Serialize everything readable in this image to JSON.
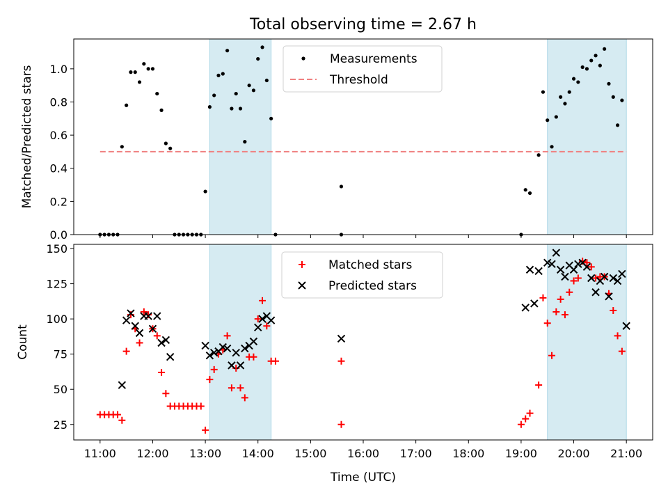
{
  "figure": {
    "title": "Total observing time = 2.67 h",
    "xlabel": "Time (UTC)"
  },
  "chart_data": [
    {
      "type": "scatter",
      "ylabel": "Matched/Predicted stars",
      "xlim": [
        "10:30",
        "21:30"
      ],
      "ylim": [
        0,
        1.18
      ],
      "y_ticks": [
        "0.0",
        "0.2",
        "0.4",
        "0.6",
        "0.8",
        "1.0"
      ],
      "grid": false,
      "legend": "upper center",
      "shaded_intervals": [
        [
          "13:05",
          "14:15"
        ],
        [
          "19:30",
          "21:00"
        ]
      ],
      "shade_color": "#add8e6",
      "series": [
        {
          "name": "Measurements",
          "marker": "dot",
          "color": "#000000",
          "points": [
            [
              "11:00",
              0.0
            ],
            [
              "11:05",
              0.0
            ],
            [
              "11:10",
              0.0
            ],
            [
              "11:15",
              0.0
            ],
            [
              "11:20",
              0.0
            ],
            [
              "11:25",
              0.53
            ],
            [
              "11:30",
              0.78
            ],
            [
              "11:35",
              0.98
            ],
            [
              "11:40",
              0.98
            ],
            [
              "11:45",
              0.92
            ],
            [
              "11:50",
              1.03
            ],
            [
              "11:55",
              1.0
            ],
            [
              "12:00",
              1.0
            ],
            [
              "12:05",
              0.85
            ],
            [
              "12:10",
              0.75
            ],
            [
              "12:15",
              0.55
            ],
            [
              "12:20",
              0.52
            ],
            [
              "12:25",
              0.0
            ],
            [
              "12:30",
              0.0
            ],
            [
              "12:35",
              0.0
            ],
            [
              "12:40",
              0.0
            ],
            [
              "12:45",
              0.0
            ],
            [
              "12:50",
              0.0
            ],
            [
              "12:55",
              0.0
            ],
            [
              "13:00",
              0.26
            ],
            [
              "13:05",
              0.77
            ],
            [
              "13:10",
              0.84
            ],
            [
              "13:15",
              0.96
            ],
            [
              "13:20",
              0.97
            ],
            [
              "13:25",
              1.11
            ],
            [
              "13:30",
              0.76
            ],
            [
              "13:35",
              0.85
            ],
            [
              "13:40",
              0.76
            ],
            [
              "13:45",
              0.56
            ],
            [
              "13:50",
              0.9
            ],
            [
              "13:55",
              0.87
            ],
            [
              "14:00",
              1.06
            ],
            [
              "14:05",
              1.13
            ],
            [
              "14:10",
              0.93
            ],
            [
              "14:15",
              0.7
            ],
            [
              "14:20",
              0.0
            ],
            [
              "15:35",
              0.0
            ],
            [
              "15:35",
              0.29
            ],
            [
              "19:00",
              0.0
            ],
            [
              "19:05",
              0.27
            ],
            [
              "19:10",
              0.25
            ],
            [
              "19:20",
              0.48
            ],
            [
              "19:25",
              0.86
            ],
            [
              "19:30",
              0.69
            ],
            [
              "19:35",
              0.53
            ],
            [
              "19:40",
              0.71
            ],
            [
              "19:45",
              0.83
            ],
            [
              "19:50",
              0.79
            ],
            [
              "19:55",
              0.86
            ],
            [
              "20:00",
              0.94
            ],
            [
              "20:05",
              0.92
            ],
            [
              "20:10",
              1.01
            ],
            [
              "20:15",
              1.0
            ],
            [
              "20:20",
              1.05
            ],
            [
              "20:25",
              1.08
            ],
            [
              "20:30",
              1.02
            ],
            [
              "20:35",
              1.12
            ],
            [
              "20:40",
              0.91
            ],
            [
              "20:45",
              0.83
            ],
            [
              "20:50",
              0.66
            ],
            [
              "20:55",
              0.81
            ]
          ]
        },
        {
          "name": "Threshold",
          "marker": "dashed-line",
          "color": "#f08080",
          "points": [
            [
              "11:00",
              0.5
            ],
            [
              "21:00",
              0.5
            ]
          ]
        }
      ]
    },
    {
      "type": "scatter",
      "ylabel": "Count",
      "xlim": [
        "10:30",
        "21:30"
      ],
      "ylim": [
        14,
        153
      ],
      "x_ticks": [
        "11:00",
        "12:00",
        "13:00",
        "14:00",
        "15:00",
        "16:00",
        "17:00",
        "18:00",
        "19:00",
        "20:00",
        "21:00"
      ],
      "y_ticks": [
        "25",
        "50",
        "75",
        "100",
        "125",
        "150"
      ],
      "grid": false,
      "legend": "upper center",
      "shaded_intervals": [
        [
          "13:05",
          "14:15"
        ],
        [
          "19:30",
          "21:00"
        ]
      ],
      "shade_color": "#add8e6",
      "series": [
        {
          "name": "Matched stars",
          "marker": "plus",
          "color": "#ff0000",
          "points": [
            [
              "11:00",
              32
            ],
            [
              "11:05",
              32
            ],
            [
              "11:10",
              32
            ],
            [
              "11:15",
              32
            ],
            [
              "11:20",
              32
            ],
            [
              "11:25",
              28
            ],
            [
              "11:30",
              77
            ],
            [
              "11:35",
              103
            ],
            [
              "11:40",
              93
            ],
            [
              "11:45",
              83
            ],
            [
              "11:50",
              105
            ],
            [
              "11:55",
              103
            ],
            [
              "12:00",
              93
            ],
            [
              "12:05",
              88
            ],
            [
              "12:10",
              62
            ],
            [
              "12:15",
              47
            ],
            [
              "12:20",
              38
            ],
            [
              "12:25",
              38
            ],
            [
              "12:30",
              38
            ],
            [
              "12:35",
              38
            ],
            [
              "12:40",
              38
            ],
            [
              "12:45",
              38
            ],
            [
              "12:50",
              38
            ],
            [
              "12:55",
              38
            ],
            [
              "13:00",
              21
            ],
            [
              "13:05",
              57
            ],
            [
              "13:10",
              64
            ],
            [
              "13:15",
              75
            ],
            [
              "13:20",
              78
            ],
            [
              "13:25",
              88
            ],
            [
              "13:30",
              51
            ],
            [
              "13:35",
              65
            ],
            [
              "13:40",
              51
            ],
            [
              "13:45",
              44
            ],
            [
              "13:50",
              73
            ],
            [
              "13:55",
              73
            ],
            [
              "14:00",
              100
            ],
            [
              "14:05",
              113
            ],
            [
              "14:10",
              95
            ],
            [
              "14:15",
              70
            ],
            [
              "14:20",
              70
            ],
            [
              "15:35",
              70
            ],
            [
              "15:35",
              25
            ],
            [
              "19:00",
              25
            ],
            [
              "19:05",
              29
            ],
            [
              "19:10",
              33
            ],
            [
              "19:20",
              53
            ],
            [
              "19:25",
              115
            ],
            [
              "19:30",
              97
            ],
            [
              "19:35",
              74
            ],
            [
              "19:40",
              105
            ],
            [
              "19:45",
              114
            ],
            [
              "19:50",
              103
            ],
            [
              "19:55",
              119
            ],
            [
              "20:00",
              127
            ],
            [
              "20:05",
              129
            ],
            [
              "20:10",
              141
            ],
            [
              "20:15",
              140
            ],
            [
              "20:20",
              137
            ],
            [
              "20:25",
              129
            ],
            [
              "20:30",
              130
            ],
            [
              "20:35",
              130
            ],
            [
              "20:40",
              118
            ],
            [
              "20:45",
              106
            ],
            [
              "20:50",
              88
            ],
            [
              "20:55",
              77
            ]
          ]
        },
        {
          "name": "Predicted stars",
          "marker": "x",
          "color": "#000000",
          "points": [
            [
              "11:25",
              53
            ],
            [
              "11:30",
              99
            ],
            [
              "11:35",
              104
            ],
            [
              "11:40",
              95
            ],
            [
              "11:45",
              90
            ],
            [
              "11:50",
              102
            ],
            [
              "11:55",
              102
            ],
            [
              "12:00",
              93
            ],
            [
              "12:05",
              102
            ],
            [
              "12:10",
              83
            ],
            [
              "12:15",
              85
            ],
            [
              "12:20",
              73
            ],
            [
              "13:00",
              81
            ],
            [
              "13:05",
              74
            ],
            [
              "13:10",
              76
            ],
            [
              "13:15",
              77
            ],
            [
              "13:20",
              80
            ],
            [
              "13:25",
              79
            ],
            [
              "13:30",
              67
            ],
            [
              "13:35",
              76
            ],
            [
              "13:40",
              67
            ],
            [
              "13:45",
              79
            ],
            [
              "13:50",
              81
            ],
            [
              "13:55",
              84
            ],
            [
              "14:00",
              94
            ],
            [
              "14:05",
              100
            ],
            [
              "14:10",
              102
            ],
            [
              "14:15",
              99
            ],
            [
              "15:35",
              86
            ],
            [
              "19:05",
              108
            ],
            [
              "19:10",
              135
            ],
            [
              "19:15",
              111
            ],
            [
              "19:20",
              134
            ],
            [
              "19:30",
              140
            ],
            [
              "19:35",
              139
            ],
            [
              "19:40",
              147
            ],
            [
              "19:45",
              135
            ],
            [
              "19:50",
              130
            ],
            [
              "19:55",
              138
            ],
            [
              "20:00",
              135
            ],
            [
              "20:05",
              139
            ],
            [
              "20:10",
              140
            ],
            [
              "20:15",
              137
            ],
            [
              "20:20",
              129
            ],
            [
              "20:25",
              119
            ],
            [
              "20:30",
              127
            ],
            [
              "20:35",
              130
            ],
            [
              "20:40",
              116
            ],
            [
              "20:45",
              129
            ],
            [
              "20:50",
              127
            ],
            [
              "20:55",
              132
            ],
            [
              "21:00",
              95
            ]
          ]
        }
      ]
    }
  ]
}
